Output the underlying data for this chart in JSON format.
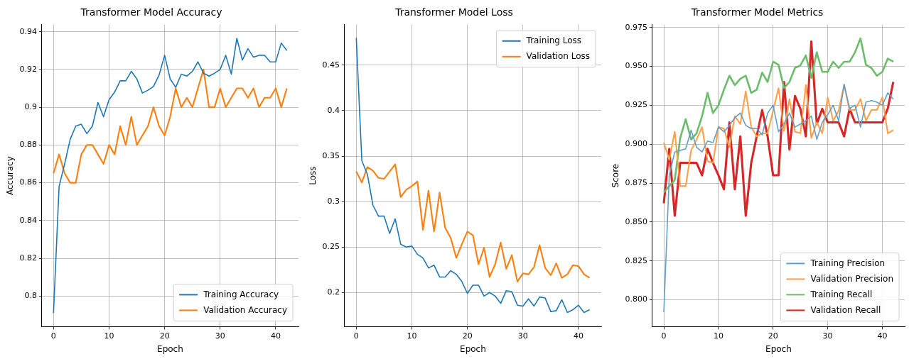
{
  "chart_data": [
    {
      "type": "line",
      "title": "Transformer Model Accuracy",
      "xlabel": "Epoch",
      "ylabel": "Accuracy",
      "x": [
        0,
        1,
        2,
        3,
        4,
        5,
        6,
        7,
        8,
        9,
        10,
        11,
        12,
        13,
        14,
        15,
        16,
        17,
        18,
        19,
        20,
        21,
        22,
        23,
        24,
        25,
        26,
        27,
        28,
        29,
        30,
        31,
        32,
        33,
        34,
        35,
        36,
        37,
        38,
        39,
        40,
        41,
        42
      ],
      "series": [
        {
          "name": "Training Accuracy",
          "color": "#1f77b4",
          "values": [
            0.791,
            0.858,
            0.87,
            0.883,
            0.89,
            0.891,
            0.886,
            0.89,
            0.9025,
            0.895,
            0.904,
            0.908,
            0.914,
            0.914,
            0.919,
            0.915,
            0.9075,
            0.909,
            0.911,
            0.917,
            0.9275,
            0.915,
            0.9105,
            0.9175,
            0.9165,
            0.919,
            0.924,
            0.918,
            0.9165,
            0.918,
            0.92,
            0.9275,
            0.9175,
            0.9365,
            0.925,
            0.931,
            0.9265,
            0.9275,
            0.9275,
            0.924,
            0.924,
            0.934,
            0.93
          ]
        },
        {
          "name": "Validation Accuracy",
          "color": "#ff7f0e",
          "values": [
            0.865,
            0.875,
            0.865,
            0.86,
            0.86,
            0.875,
            0.88,
            0.88,
            0.875,
            0.87,
            0.88,
            0.875,
            0.89,
            0.88,
            0.895,
            0.88,
            0.885,
            0.89,
            0.9,
            0.89,
            0.885,
            0.895,
            0.91,
            0.9,
            0.905,
            0.9,
            0.91,
            0.92,
            0.9,
            0.9,
            0.91,
            0.9,
            0.905,
            0.91,
            0.91,
            0.905,
            0.91,
            0.9,
            0.905,
            0.905,
            0.91,
            0.9,
            0.91
          ]
        }
      ],
      "xlim": [
        -2.1,
        44.1
      ],
      "xticks": [
        0,
        10,
        20,
        30,
        40
      ],
      "ylim": [
        0.7838,
        0.9437
      ],
      "yticks": [
        0.8,
        0.82,
        0.84,
        0.86,
        0.88,
        0.9,
        0.92,
        0.94
      ],
      "grid": true,
      "legend": "bottom right",
      "marker": "none",
      "line_style": "solid"
    },
    {
      "type": "line",
      "title": "Transformer Model Loss",
      "xlabel": "Epoch",
      "ylabel": "Loss",
      "x": [
        0,
        1,
        2,
        3,
        4,
        5,
        6,
        7,
        8,
        9,
        10,
        11,
        12,
        13,
        14,
        15,
        16,
        17,
        18,
        19,
        20,
        21,
        22,
        23,
        24,
        25,
        26,
        27,
        28,
        29,
        30,
        31,
        32,
        33,
        34,
        35,
        36,
        37,
        38,
        39,
        40,
        41,
        42
      ],
      "series": [
        {
          "name": "Training Loss",
          "color": "#1f77b4",
          "values": [
            0.48,
            0.345,
            0.33,
            0.296,
            0.284,
            0.284,
            0.265,
            0.281,
            0.253,
            0.25,
            0.251,
            0.242,
            0.238,
            0.227,
            0.23,
            0.217,
            0.217,
            0.224,
            0.22,
            0.212,
            0.199,
            0.208,
            0.208,
            0.196,
            0.2,
            0.196,
            0.188,
            0.202,
            0.201,
            0.186,
            0.185,
            0.193,
            0.185,
            0.195,
            0.194,
            0.179,
            0.18,
            0.192,
            0.178,
            0.181,
            0.186,
            0.178,
            0.181
          ]
        },
        {
          "name": "Validation Loss",
          "color": "#ff7f0e",
          "values": [
            0.333,
            0.321,
            0.338,
            0.334,
            0.326,
            0.325,
            0.333,
            0.341,
            0.305,
            0.313,
            0.317,
            0.322,
            0.269,
            0.312,
            0.267,
            0.31,
            0.271,
            0.26,
            0.238,
            0.253,
            0.267,
            0.263,
            0.231,
            0.249,
            0.217,
            0.231,
            0.255,
            0.226,
            0.241,
            0.212,
            0.221,
            0.22,
            0.228,
            0.252,
            0.227,
            0.219,
            0.232,
            0.216,
            0.22,
            0.23,
            0.229,
            0.22,
            0.216
          ]
        }
      ],
      "xlim": [
        -2.1,
        44.1
      ],
      "xticks": [
        0,
        10,
        20,
        30,
        40
      ],
      "ylim": [
        0.1624,
        0.4946
      ],
      "yticks": [
        0.2,
        0.25,
        0.3,
        0.35,
        0.4,
        0.45
      ],
      "grid": true,
      "legend": "top right",
      "marker": "none",
      "line_style": "solid"
    },
    {
      "type": "line",
      "title": "Transformer Model Metrics",
      "xlabel": "Epoch",
      "ylabel": "Score",
      "x": [
        0,
        1,
        2,
        3,
        4,
        5,
        6,
        7,
        8,
        9,
        10,
        11,
        12,
        13,
        14,
        15,
        16,
        17,
        18,
        19,
        20,
        21,
        22,
        23,
        24,
        25,
        26,
        27,
        28,
        29,
        30,
        31,
        32,
        33,
        34,
        35,
        36,
        37,
        38,
        39,
        40,
        41,
        42
      ],
      "series": [
        {
          "name": "Training Precision",
          "color": "#62a0cb",
          "values": [
            0.792,
            0.88,
            0.895,
            0.896,
            0.897,
            0.909,
            0.898,
            0.895,
            0.902,
            0.901,
            0.911,
            0.908,
            0.912,
            0.917,
            0.92,
            0.912,
            0.91,
            0.91,
            0.906,
            0.92,
            0.925,
            0.908,
            0.913,
            0.92,
            0.911,
            0.913,
            0.915,
            0.918,
            0.903,
            0.914,
            0.919,
            0.925,
            0.915,
            0.9385,
            0.923,
            0.925,
            0.911,
            0.927,
            0.928,
            0.927,
            0.925,
            0.933,
            0.929
          ]
        },
        {
          "name": "Validation Precision",
          "color": "#ffa04a",
          "values": [
            0.901,
            0.89,
            0.908,
            0.873,
            0.873,
            0.896,
            0.903,
            0.911,
            0.889,
            0.888,
            0.911,
            0.91,
            0.898,
            0.918,
            0.913,
            0.934,
            0.911,
            0.905,
            0.907,
            0.907,
            0.9215,
            0.936,
            0.9086,
            0.929,
            0.908,
            0.907,
            0.938,
            0.904,
            0.914,
            0.907,
            0.93,
            0.915,
            0.9215,
            0.938,
            0.922,
            0.922,
            0.929,
            0.915,
            0.922,
            0.922,
            0.93,
            0.907,
            0.909
          ]
        },
        {
          "name": "Training Recall",
          "color": "#6bbc6b",
          "values": [
            0.869,
            0.873,
            0.877,
            0.904,
            0.916,
            0.903,
            0.907,
            0.918,
            0.933,
            0.92,
            0.925,
            0.935,
            0.944,
            0.938,
            0.942,
            0.944,
            0.933,
            0.935,
            0.946,
            0.94,
            0.953,
            0.951,
            0.936,
            0.94,
            0.949,
            0.9506,
            0.957,
            0.9426,
            0.959,
            0.9465,
            0.9465,
            0.953,
            0.949,
            0.953,
            0.953,
            0.959,
            0.968,
            0.951,
            0.949,
            0.944,
            0.9465,
            0.955,
            0.953
          ]
        },
        {
          "name": "Validation Recall",
          "color": "#d62728",
          "values": [
            0.862,
            0.897,
            0.854,
            0.888,
            0.888,
            0.888,
            0.888,
            0.88,
            0.897,
            0.888,
            0.88,
            0.871,
            0.914,
            0.871,
            0.905,
            0.854,
            0.888,
            0.905,
            0.922,
            0.905,
            0.88,
            0.88,
            0.94,
            0.8965,
            0.931,
            0.9227,
            0.905,
            0.966,
            0.913,
            0.9227,
            0.914,
            0.914,
            0.914,
            0.905,
            0.9227,
            0.914,
            0.914,
            0.914,
            0.914,
            0.914,
            0.914,
            0.923,
            0.94
          ]
        }
      ],
      "xlim": [
        -2.1,
        44.1
      ],
      "xticks": [
        0,
        10,
        20,
        30,
        40
      ],
      "ylim": [
        0.7827,
        0.9768
      ],
      "yticks": [
        {
          "value": 0.8,
          "label": "0.800"
        },
        {
          "value": 0.825,
          "label": "0.825"
        },
        {
          "value": 0.85,
          "label": "0.850"
        },
        {
          "value": 0.875,
          "label": "0.875"
        },
        {
          "value": 0.9,
          "label": "0.900"
        },
        {
          "value": 0.925,
          "label": "0.925"
        },
        {
          "value": 0.95,
          "label": "0.950"
        },
        {
          "value": 0.975,
          "label": "0.975"
        }
      ],
      "grid": true,
      "legend": "bottom right",
      "marker": "none",
      "line_style": "solid"
    }
  ]
}
